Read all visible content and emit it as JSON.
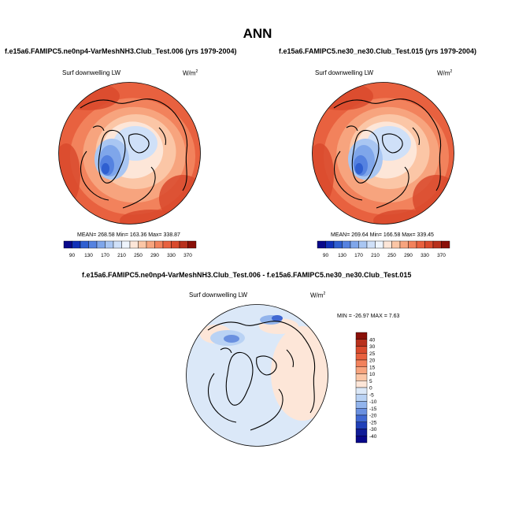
{
  "figure_title": "ANN",
  "units": "W/m",
  "units_sup": "2",
  "panels": [
    {
      "title": "f.e15a6.FAMIPC5.ne0np4-VarMeshNH3.Club_Test.006 (yrs 1979-2004)",
      "variable": "Surf downwelling LW",
      "stats": "MEAN= 268.58  Min= 163.36  Max= 338.87"
    },
    {
      "title": "f.e15a6.FAMIPC5.ne30_ne30.Club_Test.015 (yrs 1979-2004)",
      "variable": "Surf downwelling LW",
      "stats": "MEAN= 269.64  Min= 166.58  Max= 339.45"
    },
    {
      "title": "f.e15a6.FAMIPC5.ne0np4-VarMeshNH3.Club_Test.006 - f.e15a6.FAMIPC5.ne30_ne30.Club_Test.015",
      "variable": "Surf downwelling LW",
      "stats": "MIN = -26.97 MAX =   7.63"
    }
  ],
  "chart_data": [
    {
      "type": "heatmap",
      "projection": "north polar stereographic",
      "title": "f.e15a6.FAMIPC5.ne0np4-VarMeshNH3.Club_Test.006 (yrs 1979-2004)",
      "variable": "Surf downwelling LW",
      "units": "W/m2",
      "mean": 268.58,
      "min": 163.36,
      "max": 338.87,
      "colorbar_ticks": [
        90,
        130,
        170,
        210,
        250,
        290,
        330,
        370
      ],
      "colorbar_colors": [
        "#08088a",
        "#1030b8",
        "#2f5fd0",
        "#5582e0",
        "#7fa6ea",
        "#a9c6f2",
        "#cfe0f8",
        "#eef4fc",
        "#fde6d8",
        "#fbc6a6",
        "#f7a47e",
        "#f2825c",
        "#e8613f",
        "#d94a2d",
        "#b8301c",
        "#8a1008"
      ]
    },
    {
      "type": "heatmap",
      "projection": "north polar stereographic",
      "title": "f.e15a6.FAMIPC5.ne30_ne30.Club_Test.015 (yrs 1979-2004)",
      "variable": "Surf downwelling LW",
      "units": "W/m2",
      "mean": 269.64,
      "min": 166.58,
      "max": 339.45,
      "colorbar_ticks": [
        90,
        130,
        170,
        210,
        250,
        290,
        330,
        370
      ],
      "colorbar_colors": [
        "#08088a",
        "#1030b8",
        "#2f5fd0",
        "#5582e0",
        "#7fa6ea",
        "#a9c6f2",
        "#cfe0f8",
        "#eef4fc",
        "#fde6d8",
        "#fbc6a6",
        "#f7a47e",
        "#f2825c",
        "#e8613f",
        "#d94a2d",
        "#b8301c",
        "#8a1008"
      ]
    },
    {
      "type": "heatmap",
      "projection": "north polar stereographic",
      "title": "f.e15a6.FAMIPC5.ne0np4-VarMeshNH3.Club_Test.006 - f.e15a6.FAMIPC5.ne30_ne30.Club_Test.015",
      "variable": "Surf downwelling LW",
      "units": "W/m2",
      "min": -26.97,
      "max": 7.63,
      "colorbar_ticks": [
        40,
        30,
        25,
        20,
        15,
        10,
        5,
        0,
        -5,
        -10,
        -15,
        -20,
        -25,
        -30,
        -40
      ],
      "colorbar_colors": [
        "#8a1008",
        "#b8301c",
        "#d94a2d",
        "#e8613f",
        "#f2825c",
        "#f7a47e",
        "#fbc6a6",
        "#fde6d8",
        "#dbe8f8",
        "#b9d2f4",
        "#92b4ec",
        "#6a90e0",
        "#4068d2",
        "#2040b8",
        "#101c98",
        "#08088a"
      ]
    }
  ]
}
